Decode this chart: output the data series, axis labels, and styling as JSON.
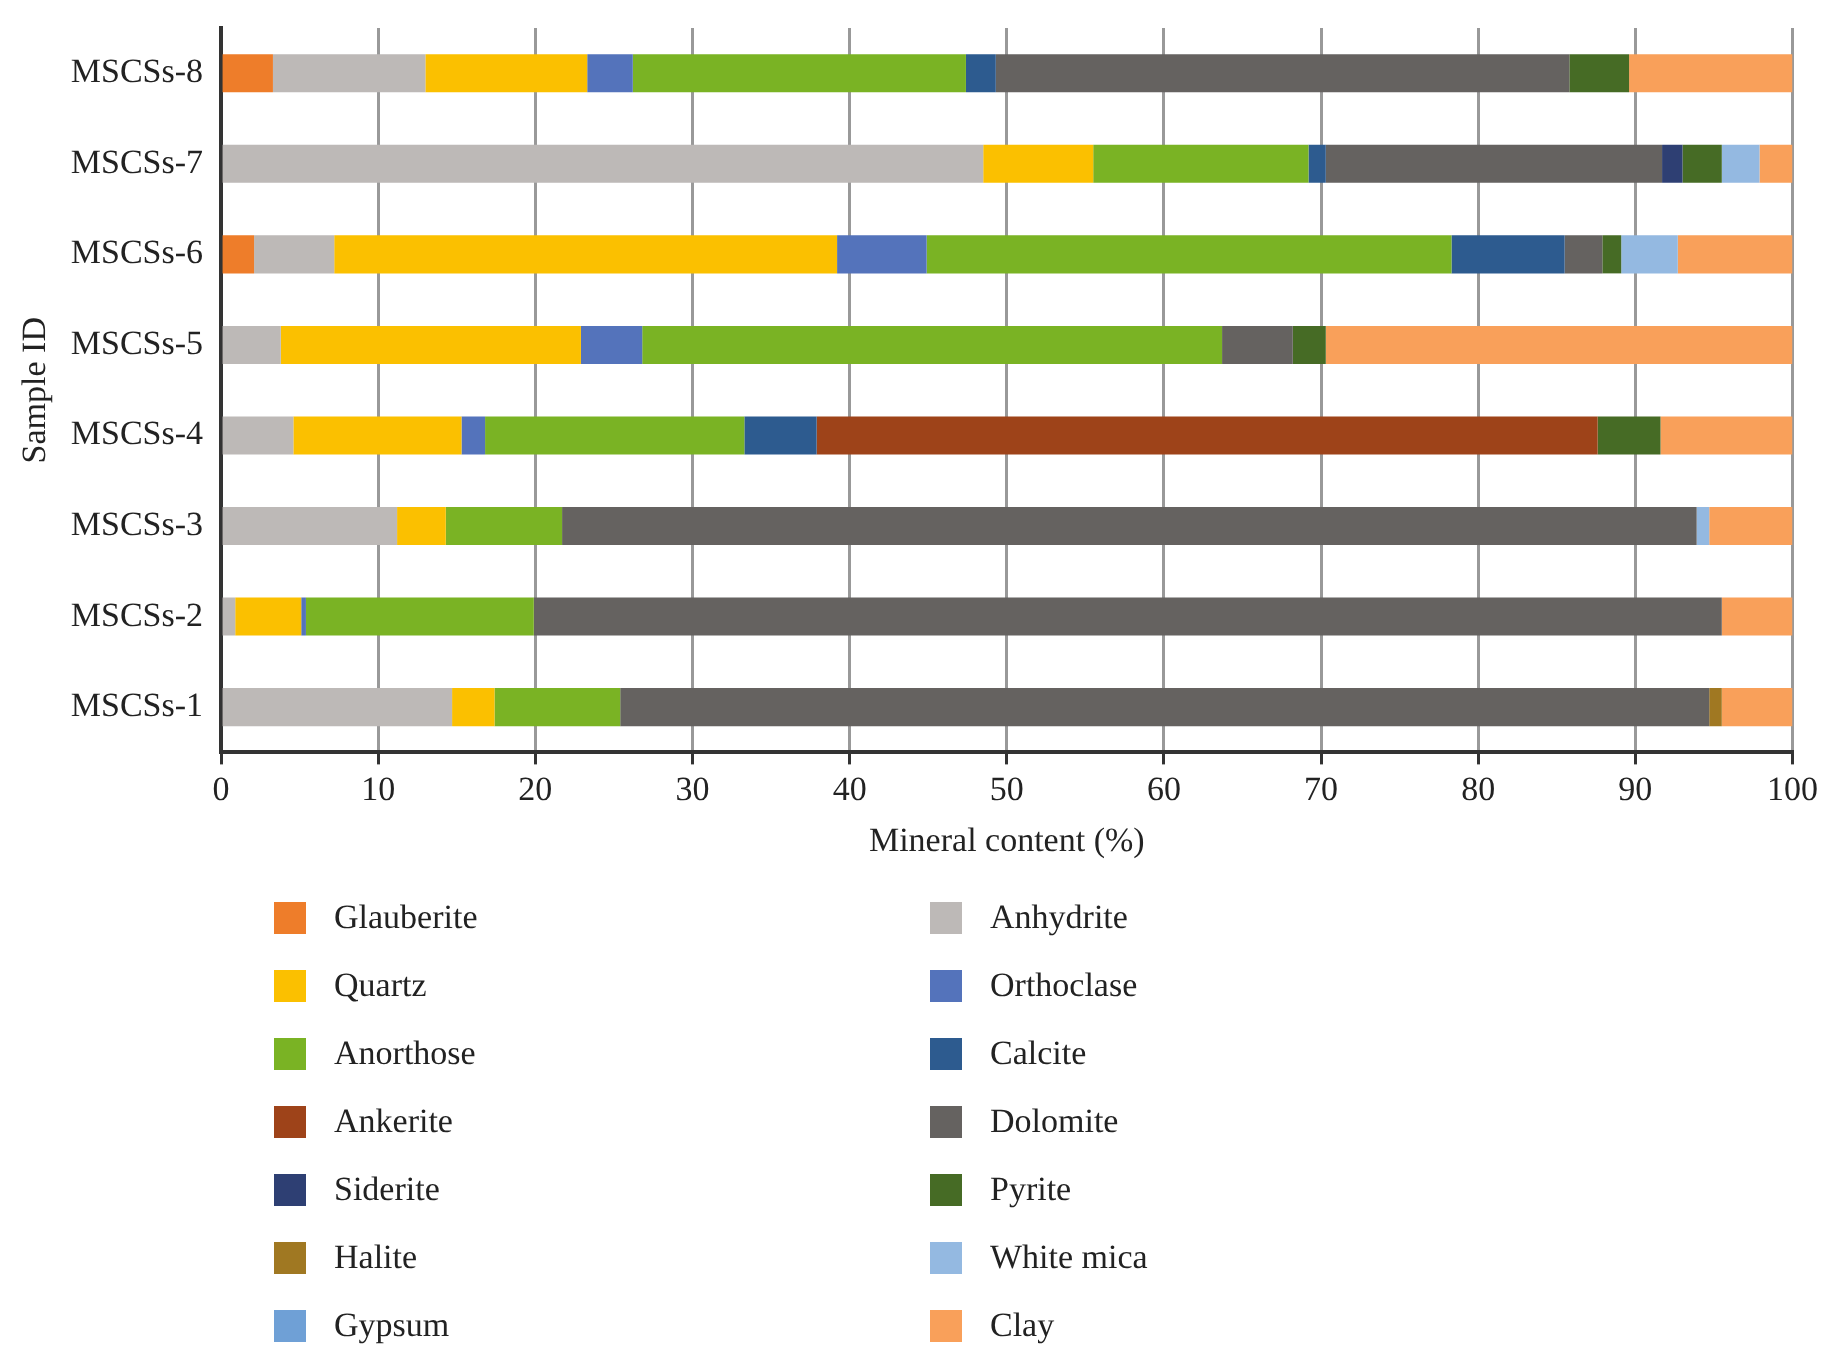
{
  "chart_data": {
    "type": "bar",
    "orientation": "horizontal",
    "stacked": true,
    "xlabel": "Mineral content (%)",
    "ylabel": "Sample ID",
    "categories": [
      "MSCSs-8",
      "MSCSs-7",
      "MSCSs-6",
      "MSCSs-5",
      "MSCSs-4",
      "MSCSs-3",
      "MSCSs-2",
      "MSCSs-1"
    ],
    "xlim": [
      0,
      100
    ],
    "xticks": [
      0,
      10,
      20,
      30,
      40,
      50,
      60,
      70,
      80,
      90,
      100
    ],
    "grid": "x",
    "legend": "bottom",
    "series": [
      {
        "name": "Glauberite",
        "color": "#ee7d2a",
        "values": [
          3.3,
          0,
          2.1,
          0,
          0,
          0,
          0,
          0
        ]
      },
      {
        "name": "Anhydrite",
        "color": "#bdb9b7",
        "values": [
          9.7,
          48.5,
          5.1,
          3.8,
          4.6,
          11.2,
          0.9,
          14.7
        ]
      },
      {
        "name": "Quartz",
        "color": "#fbc000",
        "values": [
          10.3,
          7.0,
          32.0,
          19.1,
          10.7,
          3.1,
          4.2,
          2.7
        ]
      },
      {
        "name": "Orthoclase",
        "color": "#5473bb",
        "values": [
          2.9,
          0,
          5.7,
          3.9,
          1.5,
          0,
          0.3,
          0
        ]
      },
      {
        "name": "Anorthose",
        "color": "#7ab324",
        "values": [
          21.2,
          13.7,
          33.4,
          36.9,
          16.5,
          7.4,
          14.5,
          8.0
        ]
      },
      {
        "name": "Calcite",
        "color": "#2d5b8f",
        "values": [
          1.9,
          1.1,
          7.2,
          0,
          4.6,
          0,
          0,
          0
        ]
      },
      {
        "name": "Ankerite",
        "color": "#9e4319",
        "values": [
          0,
          0,
          0,
          0,
          49.7,
          0,
          0,
          0
        ]
      },
      {
        "name": "Dolomite",
        "color": "#656260",
        "values": [
          36.5,
          21.4,
          2.4,
          4.5,
          0,
          72.2,
          75.6,
          69.3
        ]
      },
      {
        "name": "Siderite",
        "color": "#2e3f73",
        "values": [
          0,
          1.3,
          0,
          0,
          0,
          0,
          0,
          0
        ]
      },
      {
        "name": "Pyrite",
        "color": "#466b25",
        "values": [
          3.8,
          2.5,
          1.2,
          2.1,
          4.0,
          0,
          0,
          0
        ]
      },
      {
        "name": "Halite",
        "color": "#a07822",
        "values": [
          0,
          0,
          0,
          0,
          0,
          0,
          0,
          0.8
        ]
      },
      {
        "name": "White mica",
        "color": "#94b9e1",
        "values": [
          0,
          2.4,
          3.6,
          0,
          0,
          0.8,
          0,
          0
        ]
      },
      {
        "name": "Gypsum",
        "color": "#6fa0d6",
        "values": [
          0,
          0,
          0,
          0,
          0,
          0,
          0,
          0
        ]
      },
      {
        "name": "Clay",
        "color": "#f9a05a",
        "values": [
          10.4,
          2.1,
          7.3,
          29.7,
          8.4,
          5.3,
          4.5,
          4.5
        ]
      }
    ]
  }
}
